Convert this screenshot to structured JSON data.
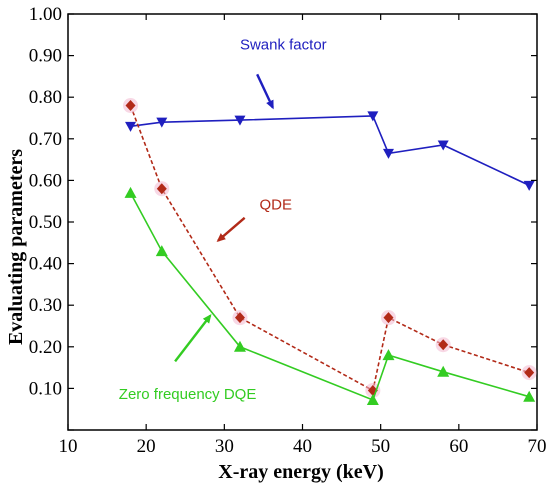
{
  "chart_data": {
    "type": "line",
    "xlabel": "X-ray energy (keV)",
    "ylabel": "Evaluating parameters",
    "xlim": [
      10,
      70
    ],
    "ylim": [
      0.0,
      1.0
    ],
    "xticks": [
      10,
      20,
      30,
      40,
      50,
      60,
      70
    ],
    "yticks": [
      "",
      "0.10",
      "0.20",
      "0.30",
      "0.40",
      "0.50",
      "0.60",
      "0.70",
      "0.80",
      "0.90",
      "1.00"
    ],
    "grid": false,
    "series": [
      {
        "name": "Swank factor",
        "color": "#1f1fbf",
        "marker": "triangle-down",
        "line_style": "solid",
        "x": [
          18,
          22,
          32,
          49,
          51,
          58,
          69
        ],
        "y": [
          0.73,
          0.74,
          0.745,
          0.755,
          0.665,
          0.685,
          0.588
        ]
      },
      {
        "name": "QDE",
        "color": "#b22a18",
        "marker": "diamond",
        "line_style": "dashed",
        "x": [
          18,
          22,
          32,
          49,
          51,
          58,
          69
        ],
        "y": [
          0.78,
          0.58,
          0.27,
          0.095,
          0.27,
          0.205,
          0.138
        ]
      },
      {
        "name": "Zero frequency DQE",
        "color": "#33cc22",
        "marker": "triangle-up",
        "line_style": "solid",
        "x": [
          18,
          22,
          32,
          49,
          51,
          58,
          69
        ],
        "y": [
          0.57,
          0.43,
          0.2,
          0.072,
          0.18,
          0.14,
          0.08
        ]
      }
    ],
    "annotations": [
      {
        "text": "Swank factor",
        "color": "#1f1fbf",
        "label_at": [
          32,
          0.915
        ],
        "arrow_from": [
          34.2,
          0.855
        ],
        "arrow_to": [
          36.2,
          0.775
        ]
      },
      {
        "text": "QDE",
        "color": "#b22a18",
        "label_at": [
          34.5,
          0.53
        ],
        "arrow_from": [
          32.6,
          0.51
        ],
        "arrow_to": [
          29.2,
          0.455
        ]
      },
      {
        "text": "Zero frequency DQE",
        "color": "#33cc22",
        "label_at": [
          16.5,
          0.075
        ],
        "arrow_from": [
          23.7,
          0.165
        ],
        "arrow_to": [
          28.2,
          0.275
        ]
      }
    ]
  }
}
